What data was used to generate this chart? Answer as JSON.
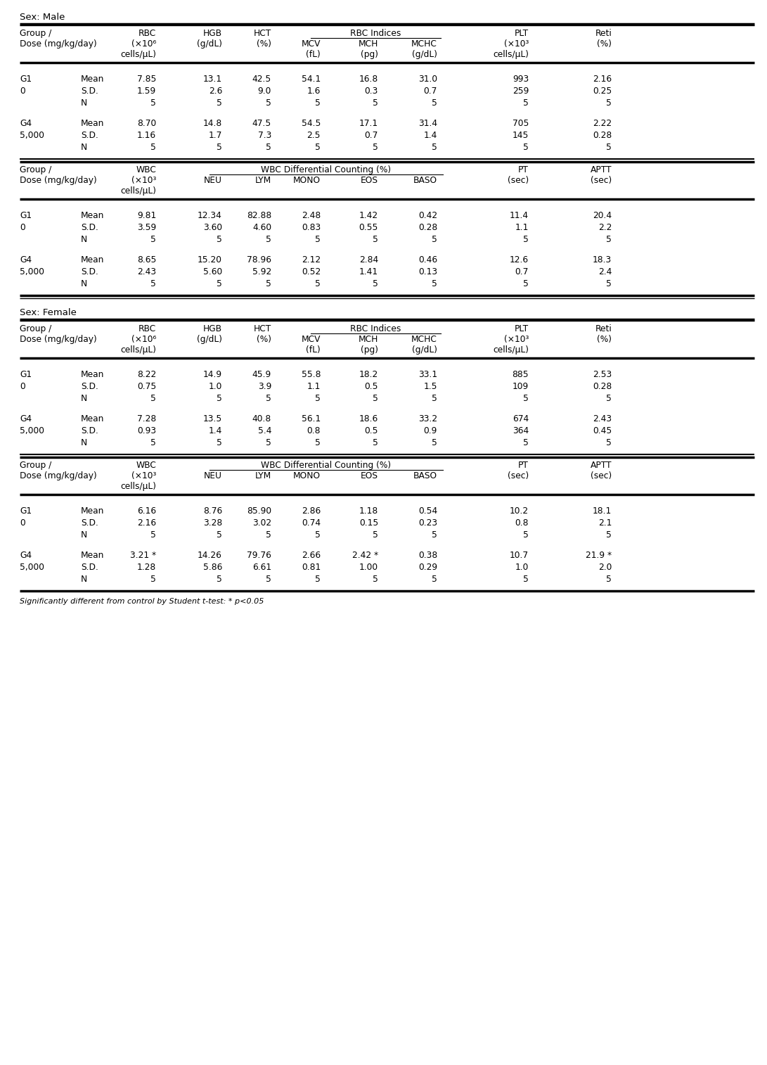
{
  "footnote": "Significantly different from control by Student t-test: * p<0.05",
  "sections": [
    {
      "sex_label": "Sex: Male",
      "table_type": "RBC",
      "groups": [
        {
          "group": "G1",
          "dose": "0",
          "rows": [
            [
              "Mean",
              "7.85",
              "13.1",
              "42.5",
              "54.1",
              "16.8",
              "31.0",
              "993",
              "2.16"
            ],
            [
              "S.D.",
              "1.59",
              "2.6",
              "9.0",
              "1.6",
              "0.3",
              "0.7",
              "259",
              "0.25"
            ],
            [
              "N",
              "5",
              "5",
              "5",
              "5",
              "5",
              "5",
              "5",
              "5"
            ]
          ]
        },
        {
          "group": "G4",
          "dose": "5,000",
          "rows": [
            [
              "Mean",
              "8.70",
              "14.8",
              "47.5",
              "54.5",
              "17.1",
              "31.4",
              "705",
              "2.22"
            ],
            [
              "S.D.",
              "1.16",
              "1.7",
              "7.3",
              "2.5",
              "0.7",
              "1.4",
              "145",
              "0.28"
            ],
            [
              "N",
              "5",
              "5",
              "5",
              "5",
              "5",
              "5",
              "5",
              "5"
            ]
          ]
        }
      ]
    },
    {
      "sex_label": null,
      "table_type": "WBC",
      "groups": [
        {
          "group": "G1",
          "dose": "0",
          "rows": [
            [
              "Mean",
              "9.81",
              "12.34",
              "82.88",
              "2.48",
              "1.42",
              "0.42",
              "11.4",
              "20.4"
            ],
            [
              "S.D.",
              "3.59",
              "3.60",
              "4.60",
              "0.83",
              "0.55",
              "0.28",
              "1.1",
              "2.2"
            ],
            [
              "N",
              "5",
              "5",
              "5",
              "5",
              "5",
              "5",
              "5",
              "5"
            ]
          ]
        },
        {
          "group": "G4",
          "dose": "5,000",
          "rows": [
            [
              "Mean",
              "8.65",
              "15.20",
              "78.96",
              "2.12",
              "2.84",
              "0.46",
              "12.6",
              "18.3"
            ],
            [
              "S.D.",
              "2.43",
              "5.60",
              "5.92",
              "0.52",
              "1.41",
              "0.13",
              "0.7",
              "2.4"
            ],
            [
              "N",
              "5",
              "5",
              "5",
              "5",
              "5",
              "5",
              "5",
              "5"
            ]
          ]
        }
      ]
    },
    {
      "sex_label": "Sex: Female",
      "table_type": "RBC",
      "groups": [
        {
          "group": "G1",
          "dose": "0",
          "rows": [
            [
              "Mean",
              "8.22",
              "14.9",
              "45.9",
              "55.8",
              "18.2",
              "33.1",
              "885",
              "2.53"
            ],
            [
              "S.D.",
              "0.75",
              "1.0",
              "3.9",
              "1.1",
              "0.5",
              "1.5",
              "109",
              "0.28"
            ],
            [
              "N",
              "5",
              "5",
              "5",
              "5",
              "5",
              "5",
              "5",
              "5"
            ]
          ]
        },
        {
          "group": "G4",
          "dose": "5,000",
          "rows": [
            [
              "Mean",
              "7.28",
              "13.5",
              "40.8",
              "56.1",
              "18.6",
              "33.2",
              "674",
              "2.43"
            ],
            [
              "S.D.",
              "0.93",
              "1.4",
              "5.4",
              "0.8",
              "0.5",
              "0.9",
              "364",
              "0.45"
            ],
            [
              "N",
              "5",
              "5",
              "5",
              "5",
              "5",
              "5",
              "5",
              "5"
            ]
          ]
        }
      ]
    },
    {
      "sex_label": null,
      "table_type": "WBC",
      "groups": [
        {
          "group": "G1",
          "dose": "0",
          "rows": [
            [
              "Mean",
              "6.16",
              "8.76",
              "85.90",
              "2.86",
              "1.18",
              "0.54",
              "10.2",
              "18.1"
            ],
            [
              "S.D.",
              "2.16",
              "3.28",
              "3.02",
              "0.74",
              "0.15",
              "0.23",
              "0.8",
              "2.1"
            ],
            [
              "N",
              "5",
              "5",
              "5",
              "5",
              "5",
              "5",
              "5",
              "5"
            ]
          ]
        },
        {
          "group": "G4",
          "dose": "5,000",
          "rows": [
            [
              "Mean",
              "3.21 *",
              "14.26",
              "79.76",
              "2.66",
              "2.42 *",
              "0.38",
              "10.7",
              "21.9 *"
            ],
            [
              "S.D.",
              "1.28",
              "5.86",
              "6.61",
              "0.81",
              "1.00",
              "0.29",
              "1.0",
              "2.0"
            ],
            [
              "N",
              "5",
              "5",
              "5",
              "5",
              "5",
              "5",
              "5",
              "5"
            ]
          ]
        }
      ]
    }
  ]
}
